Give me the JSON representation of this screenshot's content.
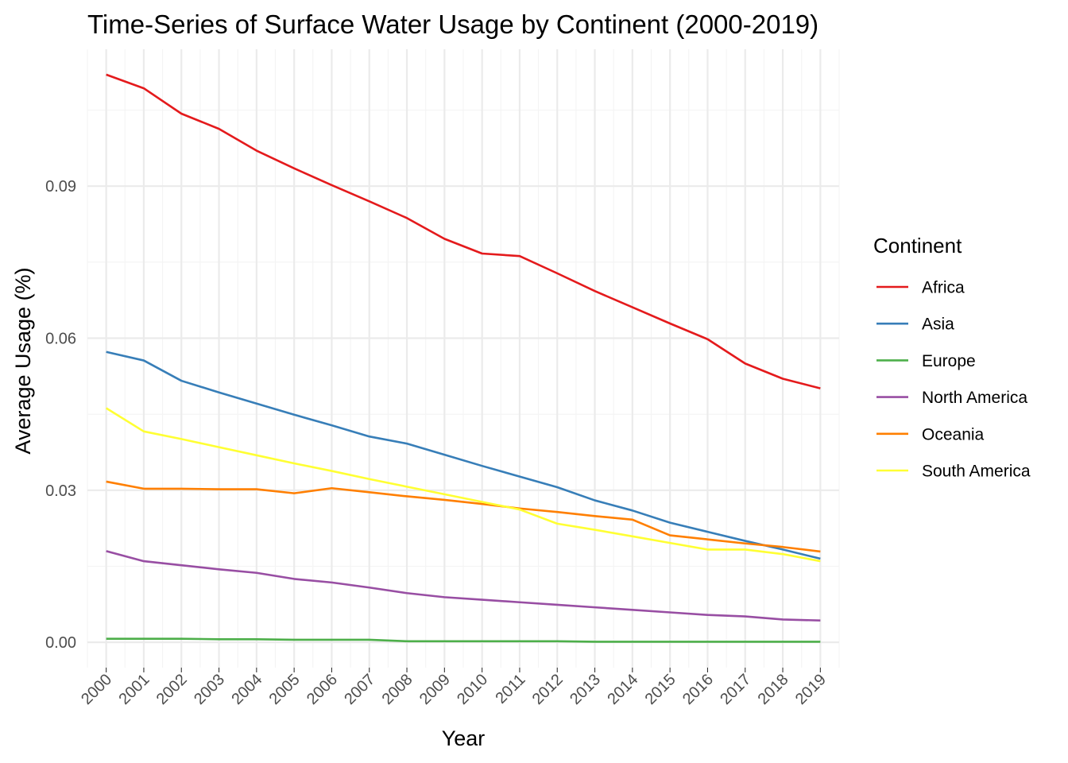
{
  "chart_data": {
    "type": "line",
    "title": "Time-Series of Surface Water Usage by Continent (2000-2019)",
    "xlabel": "Year",
    "ylabel": "Average Usage (%)",
    "x": [
      2000,
      2001,
      2002,
      2003,
      2004,
      2005,
      2006,
      2007,
      2008,
      2009,
      2010,
      2011,
      2012,
      2013,
      2014,
      2015,
      2016,
      2017,
      2018,
      2019
    ],
    "xlim": [
      1999.5,
      2019.5
    ],
    "ylim": [
      -0.005,
      0.117
    ],
    "yticks": [
      0.0,
      0.03,
      0.06,
      0.09
    ],
    "ytick_labels": [
      "0.00",
      "0.03",
      "0.06",
      "0.09"
    ],
    "grid": true,
    "legend": {
      "title": "Continent",
      "placement": "right"
    },
    "series": [
      {
        "name": "Africa",
        "color": "#e41a1c",
        "values": [
          0.112,
          0.1093,
          0.1043,
          0.1013,
          0.097,
          0.0935,
          0.0902,
          0.087,
          0.0837,
          0.0796,
          0.0767,
          0.0762,
          0.0728,
          0.0693,
          0.0661,
          0.0629,
          0.0598,
          0.055,
          0.052,
          0.0501
        ]
      },
      {
        "name": "Asia",
        "color": "#377eb8",
        "values": [
          0.0573,
          0.0556,
          0.0516,
          0.0493,
          0.0471,
          0.0449,
          0.0428,
          0.0406,
          0.0392,
          0.037,
          0.0348,
          0.0327,
          0.0306,
          0.028,
          0.026,
          0.0236,
          0.0218,
          0.02,
          0.0183,
          0.0165
        ]
      },
      {
        "name": "Europe",
        "color": "#4daf4a",
        "values": [
          0.0007,
          0.0007,
          0.0007,
          0.0006,
          0.0006,
          0.0005,
          0.0005,
          0.0005,
          0.0002,
          0.0002,
          0.0002,
          0.0002,
          0.0002,
          0.0001,
          0.0001,
          0.0001,
          0.0001,
          0.0001,
          0.0001,
          0.0001
        ]
      },
      {
        "name": "North America",
        "color": "#984ea3",
        "values": [
          0.018,
          0.016,
          0.0152,
          0.0144,
          0.0137,
          0.0125,
          0.0118,
          0.0108,
          0.0097,
          0.0089,
          0.0084,
          0.0079,
          0.0074,
          0.0069,
          0.0064,
          0.0059,
          0.0054,
          0.0051,
          0.0045,
          0.0043
        ]
      },
      {
        "name": "Oceania",
        "color": "#ff7f00",
        "values": [
          0.0317,
          0.0303,
          0.0303,
          0.0302,
          0.0302,
          0.0294,
          0.0304,
          0.0296,
          0.0288,
          0.0281,
          0.0273,
          0.0264,
          0.0257,
          0.0249,
          0.0242,
          0.0211,
          0.0203,
          0.0195,
          0.0188,
          0.0179
        ]
      },
      {
        "name": "South America",
        "color": "#ffff33",
        "values": [
          0.0462,
          0.0416,
          0.0401,
          0.0385,
          0.0369,
          0.0353,
          0.0338,
          0.0322,
          0.0307,
          0.0292,
          0.0277,
          0.0262,
          0.0234,
          0.0222,
          0.0209,
          0.0196,
          0.0183,
          0.0183,
          0.0174,
          0.016
        ]
      }
    ]
  }
}
